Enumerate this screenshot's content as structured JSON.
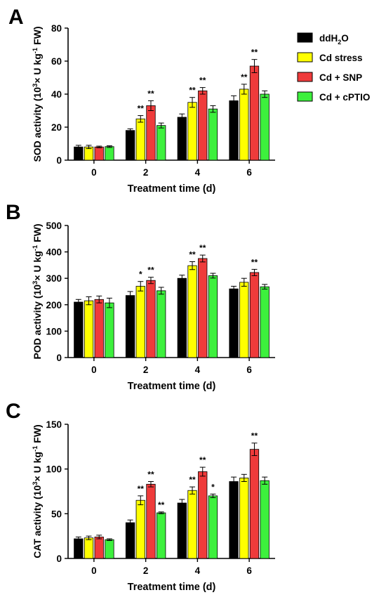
{
  "legend": {
    "items": [
      {
        "label": "ddH",
        "sub": "2",
        "label_tail": "O",
        "color": "#000000"
      },
      {
        "label": "Cd stress",
        "color": "#ffff00"
      },
      {
        "label": "Cd + SNP",
        "color": "#ef3b3b"
      },
      {
        "label": "Cd + cPTIO",
        "color": "#3df03d"
      }
    ]
  },
  "chart_data": [
    {
      "panel": "A",
      "type": "bar",
      "categories": [
        "0",
        "2",
        "4",
        "6"
      ],
      "xlabel": "Treatment time (d)",
      "ylabel": {
        "pre": "SOD activity (10",
        "sup1": "3",
        "mid": "× U kg",
        "sup2": "-1",
        "post": " FW)"
      },
      "ylim": [
        0,
        80
      ],
      "yticks": [
        0,
        20,
        40,
        60,
        80
      ],
      "series": [
        {
          "name": "ddH2O",
          "values": [
            8,
            18,
            26,
            36
          ],
          "errors": [
            1,
            1,
            2,
            3
          ],
          "sig": [
            "",
            "",
            "",
            ""
          ]
        },
        {
          "name": "Cd stress",
          "values": [
            8,
            25,
            35,
            43
          ],
          "errors": [
            1,
            2,
            3,
            3
          ],
          "sig": [
            "",
            "**",
            "**",
            "**"
          ]
        },
        {
          "name": "Cd + SNP",
          "values": [
            8,
            33,
            42,
            57
          ],
          "errors": [
            0.5,
            3,
            2,
            4
          ],
          "sig": [
            "",
            "**",
            "**",
            "**"
          ]
        },
        {
          "name": "Cd + cPTIO",
          "values": [
            8.2,
            21,
            31,
            40
          ],
          "errors": [
            0.5,
            1.5,
            2,
            2
          ],
          "sig": [
            "",
            "",
            "",
            ""
          ]
        }
      ]
    },
    {
      "panel": "B",
      "type": "bar",
      "categories": [
        "0",
        "2",
        "4",
        "6"
      ],
      "xlabel": "Treatment time (d)",
      "ylabel": {
        "pre": "POD activity (10",
        "sup1": "3",
        "mid": "× U kg",
        "sup2": "-1",
        "post": " FW)"
      },
      "ylim": [
        0,
        500
      ],
      "yticks": [
        0,
        100,
        200,
        300,
        400,
        500
      ],
      "series": [
        {
          "name": "ddH2O",
          "values": [
            210,
            235,
            300,
            260
          ],
          "errors": [
            10,
            15,
            12,
            10
          ],
          "sig": [
            "",
            "",
            "",
            ""
          ]
        },
        {
          "name": "Cd stress",
          "values": [
            215,
            270,
            348,
            285
          ],
          "errors": [
            15,
            18,
            15,
            15
          ],
          "sig": [
            "",
            "*",
            "**",
            ""
          ]
        },
        {
          "name": "Cd + SNP",
          "values": [
            220,
            292,
            375,
            322
          ],
          "errors": [
            13,
            12,
            13,
            12
          ],
          "sig": [
            "",
            "**",
            "**",
            "**"
          ]
        },
        {
          "name": "Cd + cPTIO",
          "values": [
            207,
            253,
            310,
            268
          ],
          "errors": [
            18,
            13,
            9,
            9
          ],
          "sig": [
            "",
            "",
            "",
            ""
          ]
        }
      ]
    },
    {
      "panel": "C",
      "type": "bar",
      "categories": [
        "0",
        "2",
        "4",
        "6"
      ],
      "xlabel": "Treatment time (d)",
      "ylabel": {
        "pre": "CAT activity (10",
        "sup1": "3",
        "mid": "× U kg",
        "sup2": "-1",
        "post": " FW)"
      },
      "ylim": [
        0,
        150
      ],
      "yticks": [
        0,
        50,
        100,
        150
      ],
      "series": [
        {
          "name": "ddH2O",
          "values": [
            22,
            40,
            62,
            86
          ],
          "errors": [
            2,
            3,
            4,
            5
          ],
          "sig": [
            "",
            "",
            "",
            ""
          ]
        },
        {
          "name": "Cd stress",
          "values": [
            23,
            65,
            76,
            90
          ],
          "errors": [
            2,
            5,
            4,
            4
          ],
          "sig": [
            "",
            "**",
            "**",
            ""
          ]
        },
        {
          "name": "Cd + SNP",
          "values": [
            24,
            83,
            97,
            122
          ],
          "errors": [
            2,
            3,
            5,
            7
          ],
          "sig": [
            "",
            "**",
            "**",
            "**"
          ]
        },
        {
          "name": "Cd + cPTIO",
          "values": [
            21,
            51,
            70,
            87
          ],
          "errors": [
            1,
            1,
            2,
            4
          ],
          "sig": [
            "",
            "**",
            "*",
            ""
          ]
        }
      ]
    }
  ]
}
